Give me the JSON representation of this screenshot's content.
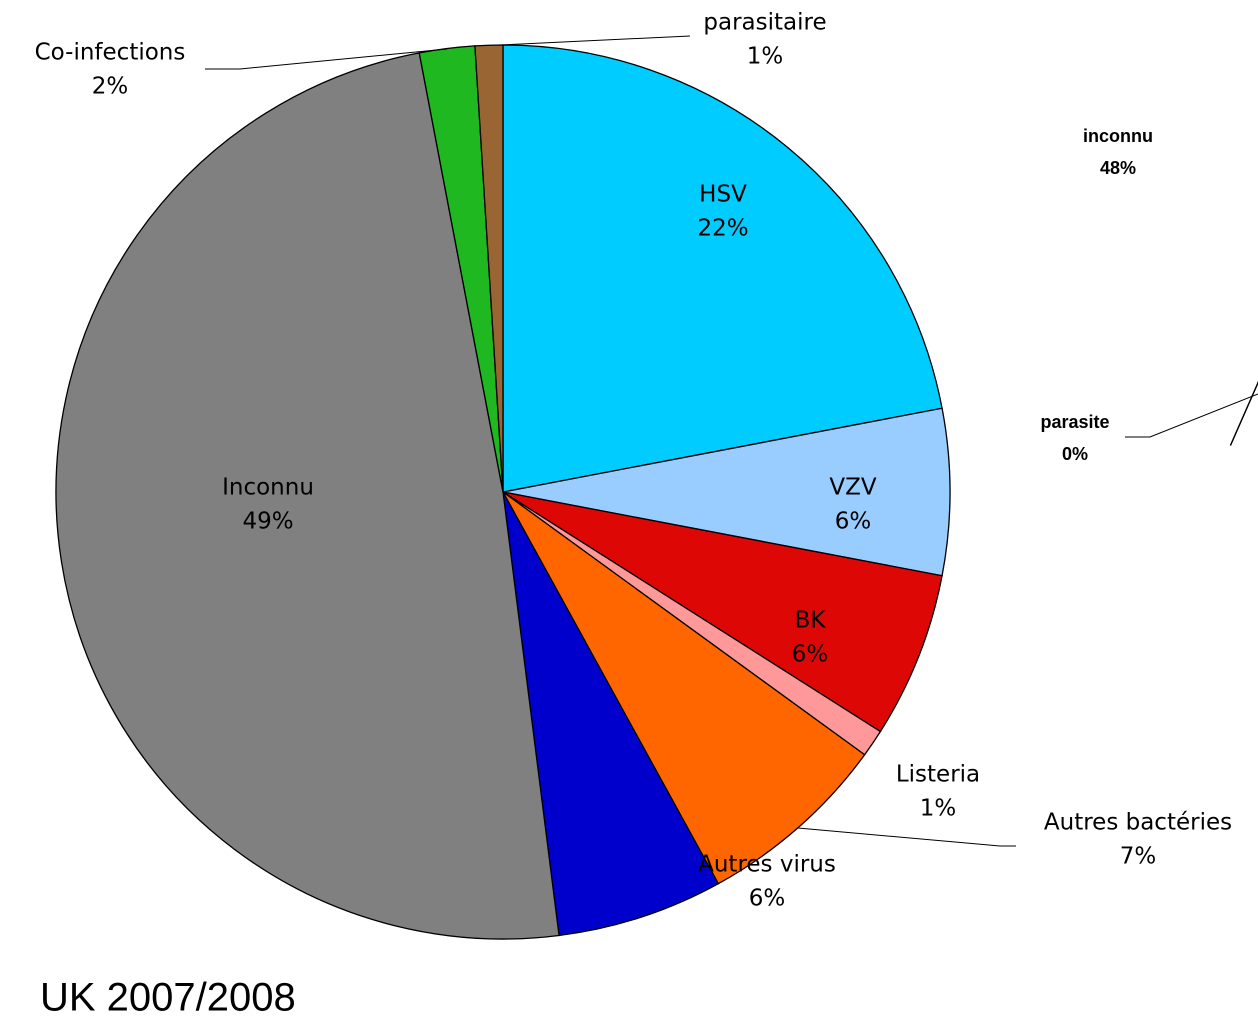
{
  "chart_data": [
    {
      "type": "pie",
      "title": "UK 2007/2008",
      "categories": [
        "HSV",
        "VZV",
        "BK",
        "Listeria",
        "Autres bactéries",
        "Autres virus",
        "Inconnu",
        "Co-infections",
        "parasitaire"
      ],
      "values": [
        22,
        6,
        6,
        1,
        7,
        6,
        49,
        2,
        1
      ],
      "value_labels": [
        "22%",
        "6%",
        "6%",
        "1%",
        "7%",
        "6%",
        "49%",
        "2%",
        "1%"
      ],
      "colors": [
        "#00ccff",
        "#99ccff",
        "#dd0806",
        "#ff9999",
        "#ff6600",
        "#0000cc",
        "#808080",
        "#20b820",
        "#996633"
      ]
    },
    {
      "type": "pie",
      "categories": [
        "parasite",
        "inconnu"
      ],
      "values": [
        0,
        48
      ],
      "value_labels": [
        "0%",
        "48%"
      ],
      "colors": [
        "#000000",
        "#969696"
      ]
    }
  ]
}
